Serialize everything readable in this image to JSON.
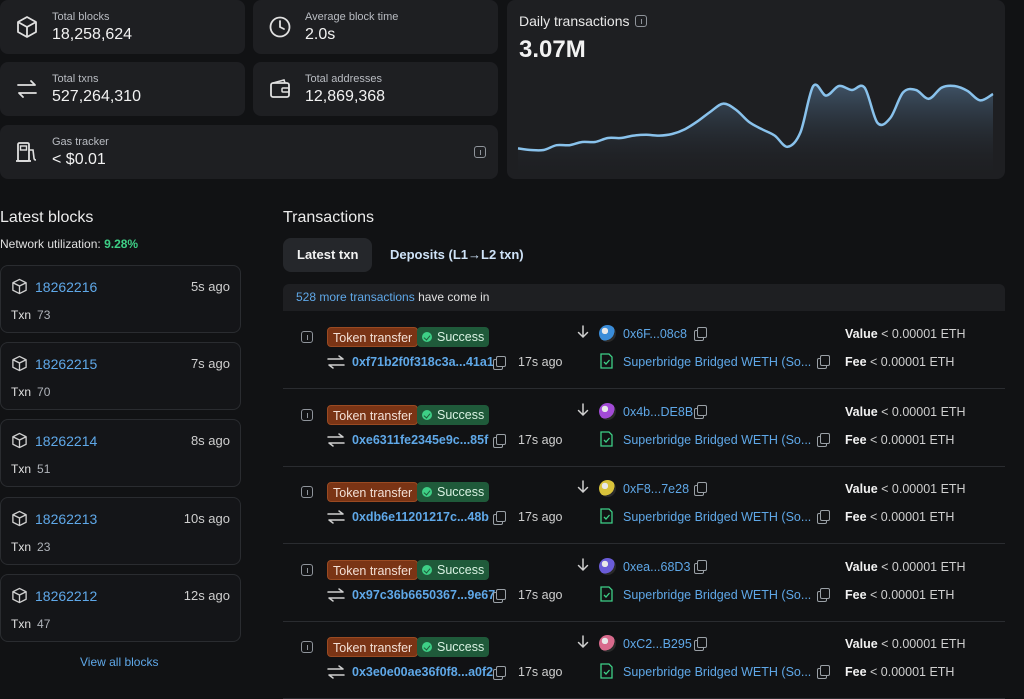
{
  "stats": {
    "total_blocks": {
      "label": "Total blocks",
      "value": "18,258,624",
      "icon": "cube-icon"
    },
    "avg_block_time": {
      "label": "Average block time",
      "value": "2.0s",
      "icon": "clock-icon"
    },
    "total_txns": {
      "label": "Total txns",
      "value": "527,264,310",
      "icon": "transfer-icon"
    },
    "total_addresses": {
      "label": "Total addresses",
      "value": "12,869,368",
      "icon": "wallet-icon"
    },
    "gas_tracker": {
      "label": "Gas tracker",
      "value": "< $0.01",
      "icon": "gas-pump-icon"
    }
  },
  "daily_chart": {
    "title": "Daily transactions",
    "value": "3.07M"
  },
  "chart_data": {
    "type": "area",
    "title": "Daily transactions",
    "xlabel": "",
    "ylabel": "",
    "grid": false,
    "legend": "none",
    "series": [
      {
        "values": [
          0.12,
          0.1,
          0.1,
          0.16,
          0.16,
          0.2,
          0.2,
          0.25,
          0.25,
          0.28,
          0.29,
          0.28,
          0.3,
          0.36,
          0.46,
          0.58,
          0.68,
          0.6,
          0.45,
          0.36,
          0.28,
          0.14,
          0.32,
          0.9,
          0.78,
          0.9,
          0.85,
          0.88,
          0.44,
          0.5,
          0.82,
          0.85,
          0.74,
          0.88,
          0.9,
          0.84,
          0.72,
          0.8
        ]
      }
    ],
    "color": "#89c2ec"
  },
  "latest_blocks": {
    "title": "Latest blocks",
    "util_label": "Network utilization:",
    "util_value": "9.28%",
    "txn_label": "Txn",
    "items": [
      {
        "number": "18262216",
        "ago": "5s ago",
        "txn": "73"
      },
      {
        "number": "18262215",
        "ago": "7s ago",
        "txn": "70"
      },
      {
        "number": "18262214",
        "ago": "8s ago",
        "txn": "51"
      },
      {
        "number": "18262213",
        "ago": "10s ago",
        "txn": "23"
      },
      {
        "number": "18262212",
        "ago": "12s ago",
        "txn": "47"
      }
    ],
    "view_all": "View all blocks"
  },
  "transactions": {
    "title": "Transactions",
    "tabs": [
      "Latest txn",
      "Deposits (L1→L2 txn)"
    ],
    "banner_link": "528 more transactions",
    "banner_text": " have come in",
    "value_label": "Value",
    "fee_label": "Fee",
    "rows": [
      {
        "type": "Token transfer",
        "status": "Success",
        "hash": "0xf71b2f0f318c3a...41a1",
        "ago": "17s ago",
        "to": "0x6F...08c8",
        "contract": "Superbridge Bridged WETH (So...",
        "value": "< 0.00001 ETH",
        "fee": "< 0.00001 ETH",
        "avatar_color": "#3a8cd8"
      },
      {
        "type": "Token transfer",
        "status": "Success",
        "hash": "0xe6311fe2345e9c...85f",
        "ago": "17s ago",
        "to": "0x4b...DE8B",
        "contract": "Superbridge Bridged WETH (So...",
        "value": "< 0.00001 ETH",
        "fee": "< 0.00001 ETH",
        "avatar_color": "#a24bd6"
      },
      {
        "type": "Token transfer",
        "status": "Success",
        "hash": "0xdb6e11201217c...48b",
        "ago": "17s ago",
        "to": "0xF8...7e28",
        "contract": "Superbridge Bridged WETH (So...",
        "value": "< 0.00001 ETH",
        "fee": "< 0.00001 ETH",
        "avatar_color": "#d8c23a"
      },
      {
        "type": "Token transfer",
        "status": "Success",
        "hash": "0x97c36b6650367...9e67",
        "ago": "17s ago",
        "to": "0xea...68D3",
        "contract": "Superbridge Bridged WETH (So...",
        "value": "< 0.00001 ETH",
        "fee": "< 0.00001 ETH",
        "avatar_color": "#6a5cd8"
      },
      {
        "type": "Token transfer",
        "status": "Success",
        "hash": "0x3e0e00ae36f0f8...a0f2",
        "ago": "17s ago",
        "to": "0xC2...B295",
        "contract": "Superbridge Bridged WETH (So...",
        "value": "< 0.00001 ETH",
        "fee": "< 0.00001 ETH",
        "avatar_color": "#d86a8c"
      }
    ]
  }
}
